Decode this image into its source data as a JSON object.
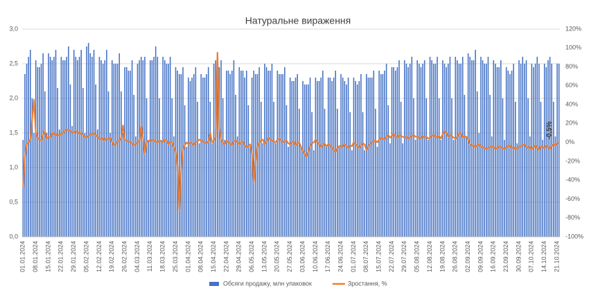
{
  "chart_data": {
    "type": "bar-line",
    "title": "Натуральне вираження",
    "categories": [
      "01.01.2024",
      null,
      null,
      null,
      null,
      null,
      null,
      "08.01.2024",
      null,
      null,
      null,
      null,
      null,
      null,
      "15.01.2024",
      null,
      null,
      null,
      null,
      null,
      null,
      "22.01.2024",
      null,
      null,
      null,
      null,
      null,
      null,
      "29.01.2024",
      null,
      null,
      null,
      null,
      null,
      null,
      "05.02.2024",
      null,
      null,
      null,
      null,
      null,
      null,
      "12.02.2024",
      null,
      null,
      null,
      null,
      null,
      null,
      "19.02.2024",
      null,
      null,
      null,
      null,
      null,
      null,
      "26.02.2024",
      null,
      null,
      null,
      null,
      null,
      null,
      "04.03.2024",
      null,
      null,
      null,
      null,
      null,
      null,
      "11.03.2024",
      null,
      null,
      null,
      null,
      null,
      null,
      "18.03.2024",
      null,
      null,
      null,
      null,
      null,
      null,
      "25.03.2024",
      null,
      null,
      null,
      null,
      null,
      null,
      "01.04.2024",
      null,
      null,
      null,
      null,
      null,
      null,
      "08.04.2024",
      null,
      null,
      null,
      null,
      null,
      null,
      "15.04.2024",
      null,
      null,
      null,
      null,
      null,
      null,
      "22.04.2024",
      null,
      null,
      null,
      null,
      null,
      null,
      "29.04.2024",
      null,
      null,
      null,
      null,
      null,
      null,
      "06.05.2024",
      null,
      null,
      null,
      null,
      null,
      null,
      "13.05.2024",
      null,
      null,
      null,
      null,
      null,
      null,
      "20.05.2024",
      null,
      null,
      null,
      null,
      null,
      null,
      "27.05.2024",
      null,
      null,
      null,
      null,
      null,
      null,
      "03.06.2024",
      null,
      null,
      null,
      null,
      null,
      null,
      "10.06.2024",
      null,
      null,
      null,
      null,
      null,
      null,
      "17.06.2024",
      null,
      null,
      null,
      null,
      null,
      null,
      "24.06.2024",
      null,
      null,
      null,
      null,
      null,
      null,
      "01.07.2024",
      null,
      null,
      null,
      null,
      null,
      null,
      "08.07.2024",
      null,
      null,
      null,
      null,
      null,
      null,
      "15.07.2024",
      null,
      null,
      null,
      null,
      null,
      null,
      "22.07.2024",
      null,
      null,
      null,
      null,
      null,
      null,
      "29.07.2024",
      null,
      null,
      null,
      null,
      null,
      null,
      "05.08.2024",
      null,
      null,
      null,
      null,
      null,
      null,
      "12.08.2024",
      null,
      null,
      null,
      null,
      null,
      null,
      "19.08.2024",
      null,
      null,
      null,
      null,
      null,
      null,
      "26.08.2024",
      null,
      null,
      null,
      null,
      null,
      null,
      "02.09.2024",
      null,
      null,
      null,
      null,
      null,
      null,
      "09.09.2024",
      null,
      null,
      null,
      null,
      null,
      null,
      "16.09.2024",
      null,
      null,
      null,
      null,
      null,
      null,
      "23.09.2024",
      null,
      null,
      null,
      null,
      null,
      null,
      "30.09.2024",
      null,
      null,
      null,
      null,
      null,
      null,
      "07.10.2024",
      null,
      null,
      null,
      null,
      null,
      null,
      "14.10.2024",
      null,
      null,
      null,
      null,
      null,
      null,
      "21.10.2024",
      null
    ],
    "series": [
      {
        "name": "Обсяги продажу, млн упаковок",
        "color": "#4472c4",
        "values": [
          1.4,
          2.35,
          2.5,
          2.6,
          2.7,
          2.0,
          1.5,
          2.55,
          2.45,
          2.45,
          2.5,
          2.65,
          2.1,
          1.5,
          2.65,
          2.6,
          2.55,
          2.6,
          2.7,
          2.15,
          1.55,
          2.6,
          2.55,
          2.55,
          2.6,
          2.75,
          2.2,
          1.6,
          2.7,
          2.6,
          2.55,
          2.6,
          2.7,
          2.15,
          1.5,
          2.75,
          2.8,
          2.65,
          2.6,
          2.7,
          2.2,
          1.55,
          2.6,
          2.55,
          2.5,
          2.55,
          2.7,
          2.1,
          1.5,
          2.55,
          2.5,
          2.5,
          2.5,
          2.65,
          2.1,
          1.5,
          2.45,
          2.45,
          2.4,
          2.4,
          2.55,
          2.05,
          1.45,
          2.5,
          2.55,
          2.6,
          2.55,
          2.6,
          2.0,
          1.4,
          2.55,
          2.55,
          2.6,
          2.75,
          2.6,
          2.0,
          1.4,
          2.6,
          2.55,
          2.5,
          2.5,
          2.6,
          2.0,
          1.45,
          2.45,
          2.4,
          2.35,
          2.35,
          2.45,
          1.9,
          1.3,
          2.3,
          2.25,
          2.3,
          2.35,
          2.45,
          1.95,
          1.35,
          2.35,
          2.3,
          2.3,
          2.35,
          2.45,
          1.95,
          1.35,
          2.5,
          2.55,
          2.45,
          2.45,
          2.55,
          2.0,
          1.4,
          2.4,
          2.4,
          2.35,
          2.4,
          2.55,
          2.05,
          1.45,
          2.45,
          2.4,
          2.4,
          2.3,
          2.4,
          1.9,
          1.3,
          2.3,
          2.4,
          2.35,
          2.35,
          2.45,
          1.95,
          1.35,
          2.5,
          2.45,
          2.4,
          2.4,
          2.5,
          1.95,
          1.35,
          2.4,
          2.35,
          2.35,
          2.35,
          2.45,
          1.9,
          1.3,
          2.3,
          2.25,
          2.25,
          2.3,
          2.35,
          1.85,
          1.3,
          2.25,
          2.2,
          2.2,
          2.2,
          2.3,
          1.8,
          1.25,
          2.3,
          2.25,
          2.25,
          2.3,
          2.4,
          1.85,
          1.3,
          2.3,
          2.3,
          2.25,
          2.3,
          2.4,
          1.85,
          1.3,
          2.35,
          2.3,
          2.25,
          2.2,
          2.3,
          1.8,
          1.25,
          2.3,
          2.25,
          2.2,
          2.25,
          2.35,
          1.8,
          1.25,
          2.35,
          2.3,
          2.3,
          2.3,
          2.4,
          1.85,
          1.3,
          2.4,
          2.35,
          2.35,
          2.4,
          2.5,
          1.9,
          1.35,
          2.45,
          2.45,
          2.4,
          2.45,
          2.55,
          1.95,
          1.35,
          2.55,
          2.5,
          2.45,
          2.5,
          2.6,
          2.0,
          1.4,
          2.55,
          2.5,
          2.45,
          2.5,
          2.55,
          2.0,
          1.4,
          2.6,
          2.55,
          2.5,
          2.5,
          2.6,
          2.0,
          1.4,
          2.55,
          2.5,
          2.45,
          2.5,
          2.6,
          2.0,
          1.4,
          2.6,
          2.55,
          2.5,
          2.5,
          2.6,
          2.05,
          1.45,
          2.65,
          2.6,
          2.55,
          2.55,
          2.7,
          2.1,
          1.5,
          2.6,
          2.55,
          2.5,
          2.5,
          2.6,
          2.05,
          1.45,
          2.55,
          2.5,
          2.45,
          2.45,
          2.55,
          2.0,
          1.4,
          2.45,
          2.4,
          2.35,
          2.4,
          2.5,
          1.95,
          1.35,
          2.55,
          2.5,
          2.6,
          2.5,
          2.55,
          2.0,
          1.45,
          2.5,
          2.45,
          2.5,
          2.6,
          2.5,
          1.95,
          1.4,
          2.5,
          2.45,
          2.55,
          2.6,
          2.5,
          1.95,
          1.45,
          2.5,
          2.5
        ]
      },
      {
        "name": "Зростання, %",
        "color": "#ed7d31",
        "axis": "y2",
        "values": [
          -48,
          -15,
          -2,
          0,
          3,
          25,
          45,
          10,
          5,
          3,
          2,
          8,
          12,
          4,
          6,
          5,
          10,
          8,
          9,
          7,
          8,
          9,
          10,
          12,
          14,
          13,
          12,
          11,
          10,
          12,
          11,
          9,
          10,
          8,
          6,
          5,
          7,
          8,
          9,
          10,
          8,
          6,
          4,
          3,
          5,
          2,
          4,
          3,
          5,
          0,
          -3,
          -2,
          1,
          2,
          5,
          18,
          3,
          2,
          1,
          0,
          -1,
          -3,
          -2,
          0,
          2,
          18,
          5,
          -12,
          0,
          2,
          1,
          3,
          2,
          1,
          0,
          2,
          1,
          0,
          3,
          2,
          -2,
          1,
          0,
          -5,
          -10,
          -25,
          -72,
          -30,
          -8,
          -3,
          0,
          -2,
          0,
          -1,
          -3,
          0,
          1,
          3,
          2,
          1,
          0,
          -1,
          1,
          10,
          0,
          2,
          5,
          95,
          15,
          3,
          0,
          -2,
          2,
          0,
          -1,
          -3,
          1,
          2,
          0,
          -2,
          0,
          1,
          -3,
          -5,
          -4,
          -2,
          -12,
          -42,
          -20,
          -5,
          0,
          2,
          3,
          -2,
          1,
          5,
          3,
          2,
          1,
          0,
          3,
          4,
          2,
          0,
          1,
          2,
          -1,
          -2,
          0,
          1,
          -3,
          -1,
          0,
          -5,
          -8,
          -12,
          -15,
          -10,
          -4,
          -1,
          0,
          3,
          0,
          -2,
          -5,
          -3,
          -1,
          -4,
          -2,
          -3,
          -5,
          -8,
          -10,
          -6,
          -4,
          -3,
          -5,
          -2,
          -4,
          -6,
          -3,
          -4,
          0,
          -2,
          -4,
          -6,
          -3,
          -1,
          -2,
          -8,
          -4,
          -2,
          0,
          1,
          2,
          0,
          3,
          5,
          4,
          3,
          6,
          8,
          5,
          7,
          9,
          6,
          5,
          8,
          7,
          6,
          5,
          6,
          4,
          5,
          7,
          8,
          6,
          6,
          5,
          4,
          7,
          5,
          6,
          4,
          5,
          7,
          8,
          6,
          5,
          7,
          4,
          9,
          12,
          10,
          6,
          8,
          7,
          5,
          4,
          6,
          9,
          10,
          5,
          7,
          6,
          3,
          -2,
          -4,
          -3,
          -5,
          -3,
          -2,
          -4,
          -5,
          -6,
          -7,
          -6,
          -5,
          -4,
          -5,
          -7,
          -6,
          -4,
          -5,
          -6,
          -7,
          -5,
          -4,
          -3,
          -6,
          -5,
          -7,
          -6,
          -5,
          -4,
          -3,
          -2,
          -5,
          -6,
          -4,
          -7,
          -5,
          -3,
          -6,
          -8,
          -4,
          -5,
          -6,
          -3,
          -5,
          -7,
          -4,
          -2,
          -3,
          -1,
          -0.5
        ]
      }
    ],
    "annotations": [
      {
        "text": "-0,5%"
      }
    ],
    "ylim": [
      0,
      3
    ],
    "yticks": [
      {
        "value": 0,
        "label": "0,0"
      },
      {
        "value": 0.5,
        "label": "0,5"
      },
      {
        "value": 1,
        "label": "1,0"
      },
      {
        "value": 1.5,
        "label": "1,5"
      },
      {
        "value": 2,
        "label": "2,0"
      },
      {
        "value": 2.5,
        "label": "2,5"
      },
      {
        "value": 3,
        "label": "3,0"
      }
    ],
    "y2lim": [
      -100,
      120
    ],
    "y2ticks": [
      {
        "value": -100,
        "label": "-100%"
      },
      {
        "value": -80,
        "label": "-80%"
      },
      {
        "value": -60,
        "label": "-60%"
      },
      {
        "value": -40,
        "label": "-40%"
      },
      {
        "value": -20,
        "label": "-20%"
      },
      {
        "value": 0,
        "label": "0%"
      },
      {
        "value": 20,
        "label": "20%"
      },
      {
        "value": 40,
        "label": "40%"
      },
      {
        "value": 60,
        "label": "60%"
      },
      {
        "value": 80,
        "label": "80%"
      },
      {
        "value": 100,
        "label": "100%"
      },
      {
        "value": 120,
        "label": "120%"
      }
    ],
    "grid": true,
    "legend": "bottom"
  }
}
